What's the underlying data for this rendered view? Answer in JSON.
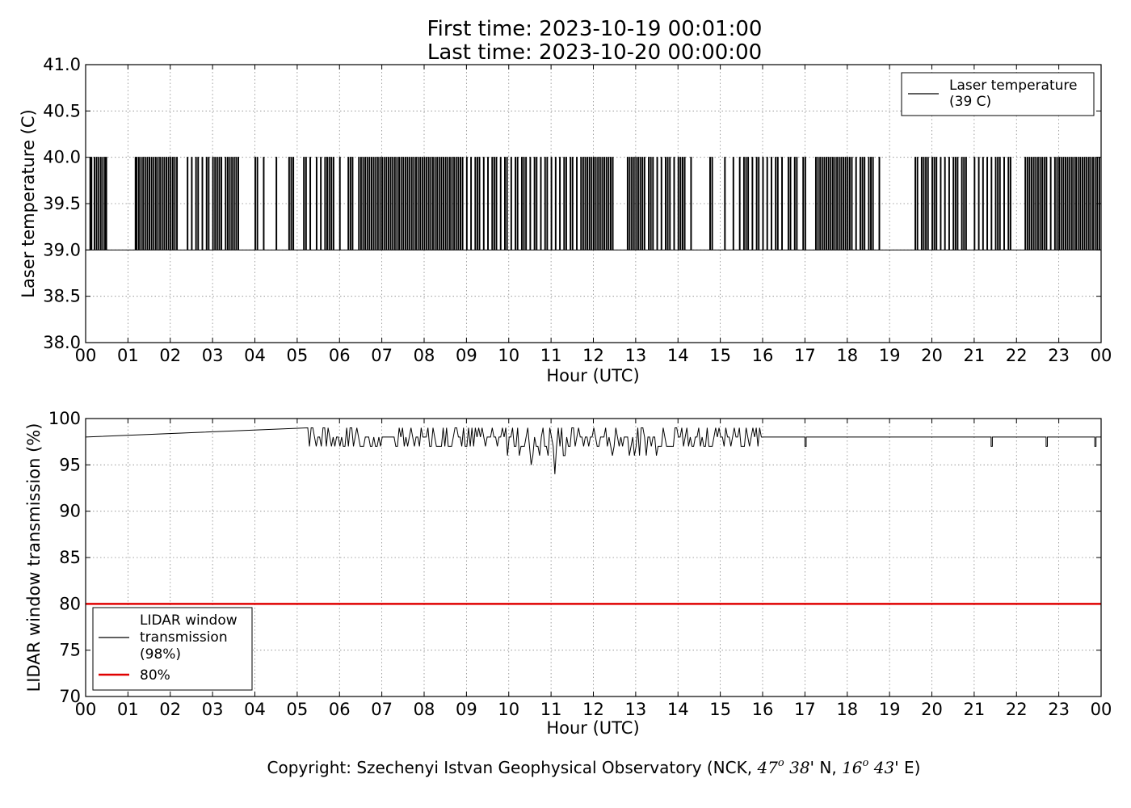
{
  "header": {
    "first_time": "First time: 2023-10-19 00:01:00",
    "last_time": "Last time: 2023-10-20 00:00:00"
  },
  "footer": {
    "prefix": "Copyright: Szechenyi Istvan Geophysical Observatory (NCK, ",
    "lat_deg": "47",
    "lat_sup": "o",
    "lat_min": "38",
    "lat_suffix": "' N, ",
    "lon_deg": "16",
    "lon_sup": "o",
    "lon_min": "43",
    "lon_suffix": "' E)"
  },
  "colors": {
    "data_line": "#000000",
    "threshold": "#e00000",
    "grid": "#888888"
  },
  "chart_data": [
    {
      "type": "line",
      "xlabel": "Hour (UTC)",
      "ylabel": "Laser temperature (C)",
      "xlim": [
        0,
        24
      ],
      "ylim": [
        38.0,
        41.0
      ],
      "x_ticks": [
        "00",
        "01",
        "02",
        "03",
        "04",
        "05",
        "06",
        "07",
        "08",
        "09",
        "10",
        "11",
        "12",
        "13",
        "14",
        "15",
        "16",
        "17",
        "18",
        "19",
        "20",
        "21",
        "22",
        "23",
        "00"
      ],
      "y_ticks": [
        "38.0",
        "38.5",
        "39.0",
        "39.5",
        "40.0",
        "40.5",
        "41.0"
      ],
      "grid": true,
      "legend_position": "top-right",
      "series": [
        {
          "name": "Laser temperature\n(39 C)",
          "color": "#000000",
          "baseline": 39.0,
          "high": 40.0,
          "note_segments_x_hours": "toggles between 39.0 and 40.0",
          "pulses_x": [
            0.1,
            0.13,
            0.2,
            0.25,
            0.3,
            0.35,
            0.4,
            0.45,
            0.48,
            1.17,
            1.2,
            1.25,
            1.3,
            1.35,
            1.4,
            1.45,
            1.5,
            1.55,
            1.6,
            1.65,
            1.7,
            1.75,
            1.8,
            1.85,
            1.9,
            1.95,
            2.0,
            2.05,
            2.1,
            2.15,
            2.4,
            2.5,
            2.6,
            2.65,
            2.75,
            2.85,
            2.9,
            3.0,
            3.05,
            3.1,
            3.15,
            3.2,
            3.3,
            3.35,
            3.4,
            3.45,
            3.5,
            3.55,
            3.6,
            4.0,
            4.05,
            4.2,
            4.5,
            4.8,
            4.85,
            4.9,
            5.15,
            5.2,
            5.3,
            5.45,
            5.55,
            5.65,
            5.7,
            5.75,
            5.8,
            5.85,
            6.0,
            6.2,
            6.25,
            6.3,
            6.45,
            6.5,
            6.55,
            6.6,
            6.65,
            6.7,
            6.75,
            6.8,
            6.85,
            6.9,
            6.95,
            7.0,
            7.05,
            7.1,
            7.15,
            7.2,
            7.25,
            7.3,
            7.35,
            7.4,
            7.45,
            7.5,
            7.55,
            7.6,
            7.65,
            7.7,
            7.75,
            7.8,
            7.85,
            7.9,
            7.95,
            8.0,
            8.05,
            8.1,
            8.15,
            8.2,
            8.25,
            8.3,
            8.35,
            8.4,
            8.45,
            8.5,
            8.55,
            8.6,
            8.65,
            8.7,
            8.75,
            8.8,
            8.85,
            8.9,
            9.0,
            9.1,
            9.2,
            9.25,
            9.3,
            9.4,
            9.5,
            9.6,
            9.65,
            9.7,
            9.8,
            9.9,
            9.95,
            10.05,
            10.15,
            10.2,
            10.3,
            10.35,
            10.4,
            10.5,
            10.6,
            10.65,
            10.75,
            10.85,
            10.9,
            11.0,
            11.1,
            11.2,
            11.3,
            11.35,
            11.45,
            11.5,
            11.6,
            11.7,
            11.75,
            11.8,
            11.85,
            11.9,
            11.95,
            12.0,
            12.05,
            12.1,
            12.15,
            12.2,
            12.25,
            12.3,
            12.35,
            12.4,
            12.45,
            12.8,
            12.85,
            12.9,
            12.95,
            13.0,
            13.05,
            13.1,
            13.15,
            13.2,
            13.3,
            13.35,
            13.4,
            13.5,
            13.6,
            13.7,
            13.75,
            13.8,
            13.9,
            14.0,
            14.05,
            14.1,
            14.15,
            14.3,
            14.75,
            14.8,
            15.1,
            15.3,
            15.45,
            15.55,
            15.6,
            15.65,
            15.75,
            15.85,
            15.9,
            16.0,
            16.1,
            16.2,
            16.3,
            16.35,
            16.45,
            16.6,
            16.65,
            16.75,
            16.8,
            16.95,
            17.0,
            17.25,
            17.3,
            17.35,
            17.4,
            17.45,
            17.5,
            17.55,
            17.6,
            17.65,
            17.7,
            17.75,
            17.8,
            17.85,
            17.9,
            17.95,
            18.0,
            18.05,
            18.1,
            18.2,
            18.3,
            18.35,
            18.4,
            18.5,
            18.55,
            18.6,
            18.75,
            19.6,
            19.65,
            19.75,
            19.8,
            19.85,
            19.9,
            20.0,
            20.05,
            20.1,
            20.2,
            20.3,
            20.4,
            20.5,
            20.55,
            20.6,
            20.7,
            20.75,
            20.8,
            21.0,
            21.1,
            21.2,
            21.3,
            21.4,
            21.5,
            21.55,
            21.6,
            21.7,
            21.8,
            21.85,
            22.2,
            22.25,
            22.3,
            22.35,
            22.4,
            22.45,
            22.5,
            22.55,
            22.6,
            22.65,
            22.7,
            22.8,
            22.9,
            22.95,
            23.0,
            23.05,
            23.1,
            23.15,
            23.2,
            23.25,
            23.3,
            23.35,
            23.4,
            23.45,
            23.5,
            23.55,
            23.6,
            23.65,
            23.7,
            23.75,
            23.8,
            23.85,
            23.9,
            23.95
          ]
        }
      ]
    },
    {
      "type": "line",
      "xlabel": "Hour (UTC)",
      "ylabel": "LIDAR window transmission (%)",
      "xlim": [
        0,
        24
      ],
      "ylim": [
        70,
        100
      ],
      "x_ticks": [
        "00",
        "01",
        "02",
        "03",
        "04",
        "05",
        "06",
        "07",
        "08",
        "09",
        "10",
        "11",
        "12",
        "13",
        "14",
        "15",
        "16",
        "17",
        "18",
        "19",
        "20",
        "21",
        "22",
        "23",
        "00"
      ],
      "y_ticks": [
        "70",
        "75",
        "80",
        "85",
        "90",
        "95",
        "100"
      ],
      "grid": true,
      "legend_position": "lower-left",
      "series": [
        {
          "name": "LIDAR window\ntransmission\n(98%)",
          "color": "#000000",
          "baseline": 98,
          "noisy_range_hours": [
            5.25,
            16.0
          ],
          "dips": [
            {
              "x": 17.0,
              "y": 97
            },
            {
              "x": 21.4,
              "y": 97
            },
            {
              "x": 22.7,
              "y": 97
            },
            {
              "x": 23.85,
              "y": 97
            }
          ]
        },
        {
          "name": "80%",
          "color": "#e00000",
          "constant": 80
        }
      ]
    }
  ]
}
